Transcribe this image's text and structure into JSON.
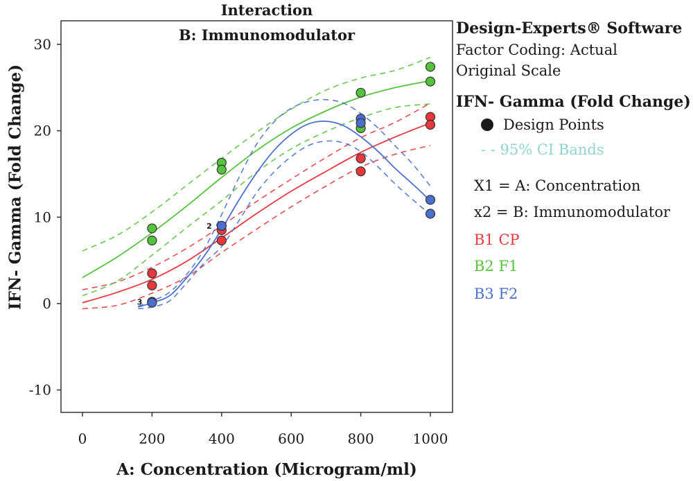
{
  "chart_data": {
    "type": "line",
    "title": "Interaction",
    "subtitle": "B: Immunomodulator",
    "xlabel": "A: Concentration (Microgram/ml)",
    "ylabel": "IFN- Gamma (Fold Change)",
    "xlim": [
      -30,
      1030
    ],
    "ylim": [
      -13,
      33
    ],
    "x_ticks": [
      0,
      200,
      400,
      600,
      800,
      1000
    ],
    "y_ticks": [
      -10,
      0,
      10,
      20,
      30
    ],
    "x_tick_labels": [
      "0",
      "200",
      "400",
      "600",
      "800",
      "1000"
    ],
    "y_tick_labels": [
      "-10",
      "0",
      "10",
      "20",
      "30"
    ],
    "grid": false,
    "legend_position": "right",
    "series": [
      {
        "name": "B1 CP",
        "color": "#e8383d",
        "fit_x": [
          0,
          100,
          200,
          300,
          400,
          500,
          600,
          700,
          800,
          900,
          1000
        ],
        "fit_y": [
          0.1,
          1.3,
          2.8,
          4.9,
          7.6,
          10.4,
          13.0,
          15.3,
          17.5,
          19.3,
          20.9
        ],
        "ci_upper": [
          1.6,
          2.5,
          4.2,
          6.4,
          9.0,
          11.8,
          14.4,
          16.9,
          19.2,
          21.0,
          23.2
        ],
        "ci_lower": [
          -0.6,
          -0.2,
          1.2,
          3.1,
          5.9,
          8.6,
          11.2,
          13.6,
          15.8,
          17.3,
          18.3
        ],
        "points": [
          [
            200,
            3.5
          ],
          [
            200,
            2.1
          ],
          [
            200,
            0.2
          ],
          [
            400,
            8.5
          ],
          [
            400,
            7.3
          ],
          [
            400,
            9.0
          ],
          [
            800,
            16.8
          ],
          [
            800,
            15.3
          ],
          [
            1000,
            21.6
          ],
          [
            1000,
            20.7
          ]
        ]
      },
      {
        "name": "B2 F1",
        "color": "#54c43c",
        "fit_x": [
          0,
          100,
          200,
          300,
          400,
          500,
          600,
          700,
          800,
          900,
          1000
        ],
        "fit_y": [
          3.0,
          5.4,
          8.2,
          11.3,
          14.6,
          17.7,
          20.3,
          22.3,
          23.9,
          25.0,
          25.8
        ],
        "ci_upper": [
          6.1,
          7.9,
          10.6,
          13.7,
          16.8,
          19.8,
          22.5,
          24.7,
          26.1,
          27.0,
          28.5
        ],
        "ci_lower": [
          0.9,
          2.6,
          5.6,
          8.8,
          11.9,
          15.2,
          17.9,
          19.9,
          21.5,
          22.7,
          23.1
        ],
        "points": [
          [
            200,
            8.7
          ],
          [
            200,
            7.3
          ],
          [
            400,
            16.3
          ],
          [
            400,
            15.5
          ],
          [
            800,
            24.4
          ],
          [
            800,
            20.3
          ],
          [
            1000,
            27.4
          ],
          [
            1000,
            25.7
          ]
        ]
      },
      {
        "name": "B3 F2",
        "color": "#4a6fd0",
        "fit_x": [
          160,
          200,
          250,
          300,
          350,
          400,
          450,
          500,
          550,
          600,
          650,
          700,
          750,
          800,
          850,
          900,
          950,
          1000
        ],
        "fit_y": [
          -0.4,
          0.1,
          0.9,
          3.0,
          5.5,
          8.6,
          12.0,
          15.1,
          17.7,
          19.6,
          20.8,
          21.1,
          20.6,
          19.3,
          17.6,
          15.6,
          13.8,
          11.9
        ],
        "ci_upper": [
          -0.3,
          0.3,
          1.3,
          3.4,
          6.3,
          10.3,
          14.6,
          18.4,
          21.0,
          22.6,
          23.4,
          23.6,
          23.2,
          22.0,
          20.3,
          18.2,
          16.1,
          13.6
        ],
        "ci_lower": [
          -0.6,
          -0.4,
          0.3,
          2.4,
          4.7,
          6.6,
          9.6,
          12.8,
          15.2,
          17.0,
          18.3,
          18.8,
          18.6,
          17.6,
          15.8,
          13.8,
          12.0,
          10.3
        ],
        "points": [
          [
            200,
            0.1
          ],
          [
            400,
            9.0
          ],
          [
            800,
            21.4
          ],
          [
            800,
            20.9
          ],
          [
            1000,
            12.0
          ],
          [
            1000,
            10.4
          ]
        ]
      }
    ],
    "point_count_labels": [
      {
        "x": 200,
        "y": 0.2,
        "text": "3"
      },
      {
        "x": 400,
        "y": 9.0,
        "text": "2"
      }
    ]
  },
  "legend": {
    "software": "Design-Experts® Software",
    "factor_coding": "Factor Coding: Actual",
    "scale": "Original Scale",
    "response": "IFN- Gamma (Fold Change)",
    "design_points": "Design Points",
    "ci_bands": "- - 95% CI Bands",
    "x1": "X1 = A: Concentration",
    "x2": "x2 = B: Immunomodulator",
    "b1": "B1 CP",
    "b2": "B2 F1",
    "b3": "B3 F2"
  },
  "colors": {
    "b1": "#e8383d",
    "b2": "#54c43c",
    "b3": "#4a6fd0",
    "ci_legend": "#8fd4d0",
    "axis": "#333333"
  }
}
